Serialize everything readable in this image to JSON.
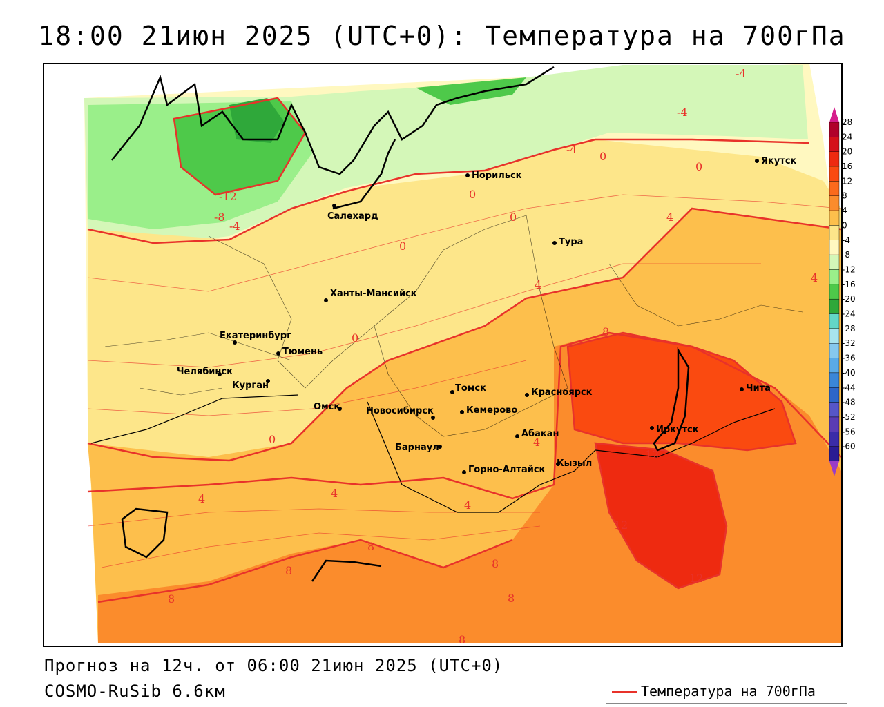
{
  "title": "18:00 21июн 2025 (UTC+0): Температура на 700гПа",
  "footer": {
    "forecast": "Прогноз на 12ч. от 06:00 21июн 2025 (UTC+0)",
    "model": "COSMO-RuSib 6.6км"
  },
  "legend": {
    "label": "Температура на 700гПа",
    "line_color": "#e8322a"
  },
  "colorbar": {
    "ticks": [
      "28",
      "24",
      "20",
      "16",
      "12",
      "8",
      "4",
      "0",
      "-4",
      "-8",
      "-12",
      "-16",
      "-20",
      "-24",
      "-28",
      "-32",
      "-36",
      "-40",
      "-44",
      "-48",
      "-52",
      "-56",
      "-60"
    ],
    "colors": [
      "#b0002a",
      "#d4101a",
      "#ee2a10",
      "#fa4a10",
      "#fb6a1c",
      "#fb8c2c",
      "#fdbf4c",
      "#fde68a",
      "#fff8c0",
      "#d4f7b8",
      "#9aef8a",
      "#4ec94a",
      "#2fa83a",
      "#63d6c7",
      "#a8e4ee",
      "#86c8ee",
      "#5aaae6",
      "#3a86d8",
      "#2e66c8",
      "#5656c8",
      "#5a3cb4",
      "#3a2ca8",
      "#2a1c94"
    ]
  },
  "cities": [
    {
      "name": "Норильск"
    },
    {
      "name": "Якутск"
    },
    {
      "name": "Салехард"
    },
    {
      "name": "Тура"
    },
    {
      "name": "Ханты-Мансийск"
    },
    {
      "name": "Екатеринбург"
    },
    {
      "name": "Тюмень"
    },
    {
      "name": "Челябинск"
    },
    {
      "name": "Курган"
    },
    {
      "name": "Омск"
    },
    {
      "name": "Новосибирск"
    },
    {
      "name": "Томск"
    },
    {
      "name": "Кемерово"
    },
    {
      "name": "Красноярск"
    },
    {
      "name": "Барнаул"
    },
    {
      "name": "Абакан"
    },
    {
      "name": "Горно-Алтайск"
    },
    {
      "name": "Кызыл"
    },
    {
      "name": "Иркутск"
    },
    {
      "name": "Чита"
    }
  ],
  "contour_labels": [
    "-4",
    "-4",
    "-4",
    "0",
    "0",
    "0",
    "0",
    "0",
    "-12",
    "-8",
    "-4",
    "0",
    "4",
    "4",
    "4",
    "0",
    "8",
    "12",
    "0",
    "4",
    "4",
    "4",
    "4",
    "8",
    "8",
    "8",
    "8",
    "12",
    "12",
    "8",
    "8"
  ]
}
